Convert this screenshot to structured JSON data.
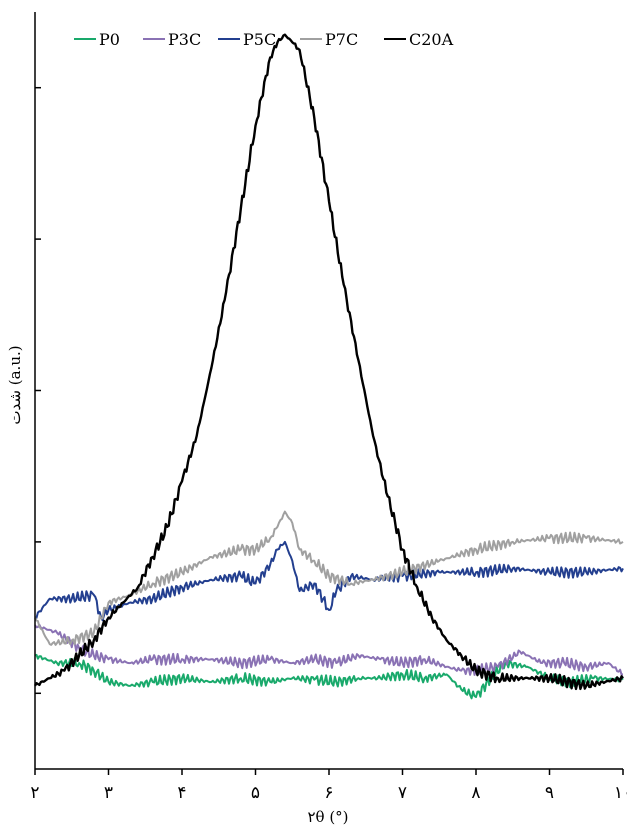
{
  "chart_data": {
    "type": "line",
    "title": "",
    "xlabel": "۲θ (°)",
    "ylabel": "شدت (a.u.)",
    "xlim": [
      2,
      10
    ],
    "ylim": [
      0,
      1
    ],
    "x_ticks": [
      2,
      3,
      4,
      5,
      6,
      7,
      8,
      9,
      10
    ],
    "x_tick_labels": [
      "۲",
      "۳",
      "۴",
      "۵",
      "۶",
      "۷",
      "۸",
      "۹",
      "۱۰"
    ],
    "y_ticks": [
      0.1,
      0.3,
      0.5,
      0.7,
      0.9
    ],
    "y_tick_labels": [],
    "grid": false,
    "legend_position": "top",
    "series": [
      {
        "name": "P0",
        "color": "#19a96b",
        "x": [
          2.0,
          2.3,
          2.6,
          2.8,
          3.0,
          3.3,
          3.6,
          4.0,
          4.4,
          4.8,
          5.2,
          5.5,
          5.8,
          6.1,
          6.4,
          6.7,
          7.0,
          7.3,
          7.6,
          7.8,
          8.0,
          8.2,
          8.4,
          8.7,
          9.0,
          9.3,
          9.6,
          10.0
        ],
        "y": [
          0.15,
          0.14,
          0.14,
          0.13,
          0.115,
          0.11,
          0.115,
          0.12,
          0.115,
          0.12,
          0.115,
          0.12,
          0.118,
          0.115,
          0.12,
          0.12,
          0.125,
          0.12,
          0.125,
          0.105,
          0.095,
          0.12,
          0.14,
          0.135,
          0.12,
          0.115,
          0.12,
          0.118
        ]
      },
      {
        "name": "P3C",
        "color": "#8a72b4",
        "x": [
          2.0,
          2.3,
          2.6,
          2.8,
          3.0,
          3.3,
          3.6,
          4.0,
          4.4,
          4.8,
          5.2,
          5.5,
          5.8,
          6.1,
          6.4,
          6.7,
          7.0,
          7.3,
          7.6,
          7.8,
          8.0,
          8.3,
          8.6,
          8.9,
          9.2,
          9.5,
          9.8,
          10.0
        ],
        "y": [
          0.19,
          0.18,
          0.16,
          0.15,
          0.145,
          0.14,
          0.145,
          0.145,
          0.145,
          0.14,
          0.145,
          0.14,
          0.145,
          0.14,
          0.15,
          0.145,
          0.14,
          0.145,
          0.135,
          0.13,
          0.13,
          0.135,
          0.155,
          0.14,
          0.14,
          0.135,
          0.14,
          0.125
        ]
      },
      {
        "name": "P5C",
        "color": "#233f8f",
        "x": [
          2.0,
          2.2,
          2.5,
          2.8,
          2.9,
          3.0,
          3.3,
          3.6,
          4.0,
          4.4,
          4.8,
          5.0,
          5.2,
          5.3,
          5.4,
          5.5,
          5.6,
          5.8,
          6.0,
          6.1,
          6.3,
          6.6,
          7.0,
          7.5,
          8.0,
          8.5,
          9.0,
          9.5,
          10.0
        ],
        "y": [
          0.2,
          0.225,
          0.225,
          0.23,
          0.2,
          0.21,
          0.22,
          0.225,
          0.24,
          0.25,
          0.255,
          0.245,
          0.27,
          0.29,
          0.3,
          0.275,
          0.235,
          0.245,
          0.21,
          0.235,
          0.255,
          0.25,
          0.255,
          0.26,
          0.26,
          0.265,
          0.26,
          0.26,
          0.265
        ]
      },
      {
        "name": "P7C",
        "color": "#a0a0a0",
        "x": [
          2.0,
          2.2,
          2.5,
          2.8,
          3.0,
          3.3,
          3.6,
          4.0,
          4.4,
          4.8,
          5.0,
          5.2,
          5.3,
          5.4,
          5.5,
          5.6,
          5.8,
          6.0,
          6.3,
          6.6,
          7.0,
          7.5,
          8.0,
          8.5,
          9.0,
          9.5,
          10.0
        ],
        "y": [
          0.2,
          0.165,
          0.17,
          0.18,
          0.22,
          0.23,
          0.245,
          0.26,
          0.28,
          0.29,
          0.29,
          0.305,
          0.32,
          0.34,
          0.325,
          0.29,
          0.275,
          0.255,
          0.245,
          0.25,
          0.26,
          0.275,
          0.29,
          0.3,
          0.305,
          0.305,
          0.3
        ]
      },
      {
        "name": "C20A",
        "color": "#000000",
        "x": [
          2.0,
          2.2,
          2.4,
          2.6,
          2.8,
          3.0,
          3.2,
          3.4,
          3.6,
          3.8,
          4.0,
          4.2,
          4.4,
          4.6,
          4.8,
          5.0,
          5.2,
          5.3,
          5.4,
          5.5,
          5.6,
          5.8,
          6.0,
          6.2,
          6.4,
          6.6,
          6.8,
          7.0,
          7.2,
          7.4,
          7.6,
          7.8,
          8.0,
          8.3,
          8.6,
          9.0,
          9.5,
          10.0
        ],
        "y": [
          0.11,
          0.12,
          0.13,
          0.15,
          0.17,
          0.2,
          0.22,
          0.24,
          0.28,
          0.32,
          0.38,
          0.44,
          0.53,
          0.63,
          0.74,
          0.85,
          0.94,
          0.96,
          0.97,
          0.96,
          0.95,
          0.86,
          0.75,
          0.64,
          0.54,
          0.44,
          0.36,
          0.29,
          0.24,
          0.2,
          0.17,
          0.15,
          0.13,
          0.12,
          0.12,
          0.12,
          0.11,
          0.12
        ]
      }
    ]
  }
}
